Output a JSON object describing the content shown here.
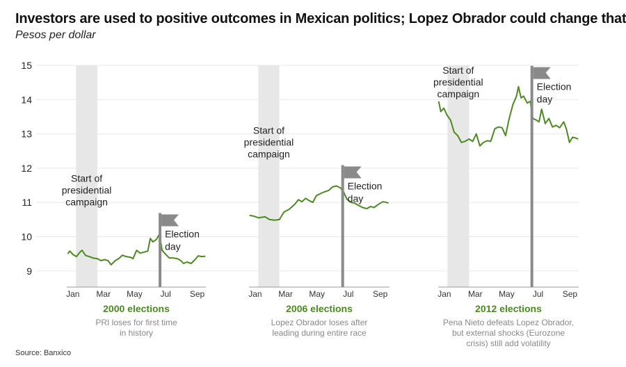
{
  "title": "Investors are used to positive outcomes in Mexican politics; Lopez Obrador could change that",
  "subtitle": "Pesos per dollar",
  "source": "Source: Banxico",
  "colors": {
    "line": "#4a8a1e",
    "campaign_band": "#e6e7e6",
    "election_flag": "#8a8a8a",
    "grid": "#e8e8e8"
  },
  "chart_data": {
    "type": "line",
    "ylim": [
      8.5,
      15
    ],
    "yticks": [
      9,
      10,
      11,
      12,
      13,
      14,
      15
    ],
    "grid": true,
    "month_ticks": [
      "Jan",
      "Mar",
      "May",
      "Jul",
      "Sep"
    ],
    "annotation_campaign": [
      "Start of",
      "presidential",
      "campaign"
    ],
    "annotation_election": [
      "Election",
      "day"
    ],
    "panels": [
      {
        "title": "2000 elections",
        "note": [
          "PRI loses for first time",
          "in history"
        ],
        "year": 2000,
        "campaign_start": "2000-01-19",
        "campaign_band_end": "2000-03-01",
        "election_day": "2000-07-02",
        "points": [
          [
            "01-03",
            9.5
          ],
          [
            "01-07",
            9.58
          ],
          [
            "01-13",
            9.48
          ],
          [
            "01-20",
            9.42
          ],
          [
            "01-27",
            9.55
          ],
          [
            "01-31",
            9.6
          ],
          [
            "02-07",
            9.45
          ],
          [
            "02-14",
            9.42
          ],
          [
            "02-21",
            9.38
          ],
          [
            "03-01",
            9.36
          ],
          [
            "03-08",
            9.3
          ],
          [
            "03-15",
            9.33
          ],
          [
            "03-22",
            9.3
          ],
          [
            "03-28",
            9.18
          ],
          [
            "04-05",
            9.3
          ],
          [
            "04-12",
            9.36
          ],
          [
            "04-19",
            9.46
          ],
          [
            "04-26",
            9.42
          ],
          [
            "05-05",
            9.4
          ],
          [
            "05-10",
            9.36
          ],
          [
            "05-17",
            9.6
          ],
          [
            "05-24",
            9.52
          ],
          [
            "06-01",
            9.55
          ],
          [
            "06-08",
            9.58
          ],
          [
            "06-13",
            9.95
          ],
          [
            "06-18",
            9.85
          ],
          [
            "06-25",
            9.92
          ],
          [
            "07-01",
            10.08
          ],
          [
            "07-06",
            9.6
          ],
          [
            "07-12",
            9.5
          ],
          [
            "07-20",
            9.38
          ],
          [
            "07-28",
            9.38
          ],
          [
            "08-05",
            9.36
          ],
          [
            "08-12",
            9.3
          ],
          [
            "08-17",
            9.22
          ],
          [
            "08-24",
            9.26
          ],
          [
            "09-01",
            9.22
          ],
          [
            "09-08",
            9.32
          ],
          [
            "09-15",
            9.44
          ],
          [
            "09-22",
            9.42
          ],
          [
            "09-29",
            9.43
          ]
        ]
      },
      {
        "title": "2006 elections",
        "note": [
          "Lopez Obrador loses after",
          "leading during entire race"
        ],
        "year": 2006,
        "campaign_start": "2006-01-19",
        "campaign_band_end": "2006-03-01",
        "election_day": "2006-07-02",
        "points": [
          [
            "01-02",
            10.62
          ],
          [
            "01-10",
            10.6
          ],
          [
            "01-20",
            10.55
          ],
          [
            "02-01",
            10.58
          ],
          [
            "02-10",
            10.5
          ],
          [
            "02-20",
            10.48
          ],
          [
            "03-01",
            10.5
          ],
          [
            "03-10",
            10.72
          ],
          [
            "03-20",
            10.8
          ],
          [
            "03-31",
            10.95
          ],
          [
            "04-07",
            11.08
          ],
          [
            "04-14",
            11.02
          ],
          [
            "04-21",
            11.12
          ],
          [
            "04-28",
            11.05
          ],
          [
            "05-05",
            11.0
          ],
          [
            "05-12",
            11.2
          ],
          [
            "05-19",
            11.25
          ],
          [
            "05-26",
            11.3
          ],
          [
            "06-05",
            11.35
          ],
          [
            "06-12",
            11.45
          ],
          [
            "06-20",
            11.48
          ],
          [
            "06-28",
            11.42
          ],
          [
            "07-04",
            11.3
          ],
          [
            "07-10",
            11.1
          ],
          [
            "07-18",
            11.0
          ],
          [
            "07-25",
            10.98
          ],
          [
            "08-01",
            10.92
          ],
          [
            "08-10",
            10.85
          ],
          [
            "08-18",
            10.82
          ],
          [
            "08-25",
            10.88
          ],
          [
            "09-01",
            10.85
          ],
          [
            "09-10",
            10.95
          ],
          [
            "09-18",
            11.02
          ],
          [
            "09-25",
            11.0
          ],
          [
            "09-29",
            10.98
          ]
        ]
      },
      {
        "title": "2012 elections",
        "note": [
          "Pena Nieto defeats Lopez Obrador,",
          "but external shocks (Eurozone",
          "crisis) still add volatility"
        ],
        "year": 2012,
        "campaign_start": "2012-01-19",
        "campaign_band_end": "2012-03-01",
        "election_day": "2012-07-01",
        "points": [
          [
            "01-02",
            13.95
          ],
          [
            "01-06",
            13.65
          ],
          [
            "01-12",
            13.75
          ],
          [
            "01-18",
            13.55
          ],
          [
            "01-25",
            13.4
          ],
          [
            "02-01",
            13.05
          ],
          [
            "02-08",
            12.95
          ],
          [
            "02-15",
            12.75
          ],
          [
            "02-22",
            12.78
          ],
          [
            "03-01",
            12.85
          ],
          [
            "03-08",
            12.78
          ],
          [
            "03-15",
            13.0
          ],
          [
            "03-22",
            12.65
          ],
          [
            "03-29",
            12.75
          ],
          [
            "04-05",
            12.8
          ],
          [
            "04-12",
            12.78
          ],
          [
            "04-20",
            13.15
          ],
          [
            "04-27",
            13.2
          ],
          [
            "05-04",
            13.18
          ],
          [
            "05-11",
            12.95
          ],
          [
            "05-18",
            13.45
          ],
          [
            "05-25",
            13.85
          ],
          [
            "06-01",
            14.1
          ],
          [
            "06-05",
            14.38
          ],
          [
            "06-10",
            14.05
          ],
          [
            "06-15",
            14.1
          ],
          [
            "06-22",
            13.9
          ],
          [
            "06-28",
            13.95
          ],
          [
            "07-03",
            13.45
          ],
          [
            "07-10",
            13.4
          ],
          [
            "07-15",
            13.35
          ],
          [
            "07-20",
            13.72
          ],
          [
            "07-27",
            13.3
          ],
          [
            "08-03",
            13.45
          ],
          [
            "08-10",
            13.2
          ],
          [
            "08-17",
            13.25
          ],
          [
            "08-24",
            13.18
          ],
          [
            "09-01",
            13.35
          ],
          [
            "09-06",
            13.15
          ],
          [
            "09-12",
            12.75
          ],
          [
            "09-18",
            12.9
          ],
          [
            "09-24",
            12.88
          ],
          [
            "09-29",
            12.85
          ]
        ]
      }
    ]
  }
}
